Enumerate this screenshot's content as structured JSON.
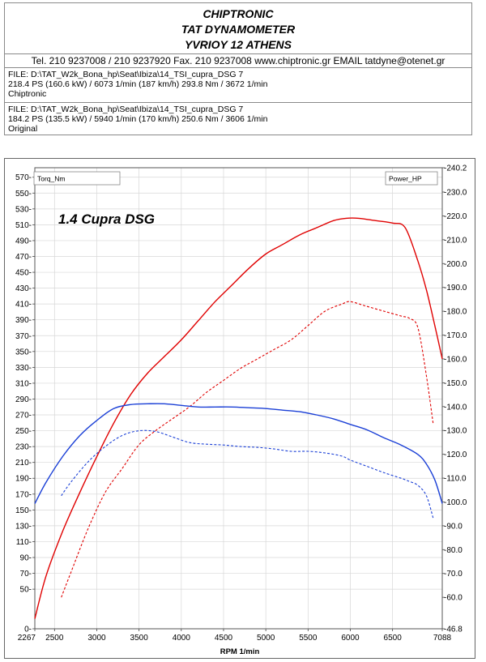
{
  "header": {
    "company": "CHIPTRONIC",
    "subtitle": "TAT DYNAMOMETER",
    "address": "YVRIOY 12 ATHENS",
    "contact": "Tel. 210 9237008 / 210 9237920   Fax. 210 9237008 www.chiptronic.gr EMAIL tatdyne@otenet.gr"
  },
  "runs": [
    {
      "file": "FILE: D:\\TAT_W2k_Bona_hp\\Seat\\Ibiza\\14_TSI_cupra_DSG 7",
      "result": "218.4 PS  (160.6 kW) / 6073 1/min (187 km/h)     293.8 Nm / 3672 1/min",
      "name": "Chiptronic"
    },
    {
      "file": "FILE: D:\\TAT_W2k_Bona_hp\\Seat\\Ibiza\\14_TSI_cupra_DSG 7",
      "result": "184.2 PS  (135.5 kW) / 5940 1/min (170 km/h)     250.6 Nm / 3606 1/min",
      "name": "Original"
    }
  ],
  "chart_data": {
    "type": "line",
    "title": "1.4 Cupra DSG",
    "xlabel": "RPM  1/min",
    "left_legend": "Torq_Nm",
    "right_legend": "Power_HP",
    "xlim": [
      2267,
      7088
    ],
    "x_ticks": [
      "2267",
      "2500",
      "3000",
      "3500",
      "4000",
      "4500",
      "5000",
      "5500",
      "6000",
      "6500",
      "7088"
    ],
    "y_left_lim": [
      0,
      582
    ],
    "y_left_ticks": [
      "0",
      "50",
      "70",
      "90",
      "110",
      "130",
      "150",
      "170",
      "190",
      "210",
      "230",
      "250",
      "270",
      "290",
      "310",
      "330",
      "350",
      "370",
      "390",
      "410",
      "430",
      "450",
      "470",
      "490",
      "510",
      "530",
      "550",
      "570"
    ],
    "y_right_lim": [
      46.8,
      240.2
    ],
    "y_right_ticks": [
      "-240.2",
      "-230.0",
      "-220.0",
      "-210.0",
      "-200.0",
      "-190.0",
      "-180.0",
      "-170.0",
      "-160.0",
      "-150.0",
      "-140.0",
      "-130.0",
      "-120.0",
      "-110.0",
      "-100.0",
      "-90.0",
      "-80.0",
      "-70.0",
      "-60.0",
      "-46.8"
    ],
    "grid": true,
    "series": [
      {
        "name": "Chiptronic",
        "axis": "right",
        "color": "#e00000",
        "style": "solid",
        "x": [
          2267,
          2400,
          2600,
          2800,
          3000,
          3200,
          3400,
          3600,
          3800,
          4000,
          4200,
          4400,
          4600,
          4800,
          5000,
          5200,
          5400,
          5600,
          5800,
          5950,
          6100,
          6300,
          6500,
          6650,
          6800,
          6900,
          7000,
          7088
        ],
        "values": [
          51,
          69,
          88,
          104,
          119,
          133,
          145,
          154,
          161,
          168,
          176,
          184,
          191,
          198,
          204,
          208,
          212,
          215,
          218,
          219,
          219,
          218,
          217,
          215,
          201,
          189,
          174,
          160
        ]
      },
      {
        "name": "Original",
        "axis": "right",
        "color": "#e00000",
        "style": "dashed",
        "x": [
          2580,
          2700,
          2900,
          3100,
          3300,
          3500,
          3700,
          3900,
          4100,
          4300,
          4500,
          4700,
          4900,
          5100,
          5300,
          5500,
          5700,
          5900,
          6000,
          6200,
          6400,
          6600,
          6700,
          6800,
          6900,
          6980
        ],
        "values": [
          60,
          71,
          89,
          104,
          114,
          124,
          130,
          135,
          140,
          146,
          151,
          156,
          160,
          164,
          168,
          174,
          180,
          183,
          184,
          182,
          180,
          178,
          177,
          173,
          153,
          133
        ]
      },
      {
        "name": "Chiptronic",
        "axis": "left",
        "color": "#1a3fd6",
        "style": "solid",
        "x": [
          2267,
          2400,
          2600,
          2800,
          3000,
          3200,
          3400,
          3600,
          3800,
          4000,
          4200,
          4400,
          4600,
          4800,
          5000,
          5200,
          5400,
          5600,
          5800,
          6000,
          6200,
          6400,
          6600,
          6800,
          6900,
          7000,
          7088
        ],
        "values": [
          158,
          185,
          218,
          244,
          263,
          278,
          283,
          284,
          284,
          282,
          280,
          280,
          280,
          279,
          278,
          276,
          274,
          270,
          265,
          258,
          251,
          241,
          232,
          220,
          208,
          188,
          158
        ]
      },
      {
        "name": "Original",
        "axis": "left",
        "color": "#1a3fd6",
        "style": "dashed",
        "x": [
          2580,
          2700,
          2900,
          3100,
          3300,
          3500,
          3700,
          3900,
          4100,
          4300,
          4500,
          4700,
          4900,
          5100,
          5300,
          5500,
          5700,
          5900,
          6000,
          6200,
          6400,
          6600,
          6700,
          6800,
          6900,
          6980
        ],
        "values": [
          168,
          186,
          211,
          230,
          244,
          250,
          249,
          242,
          235,
          233,
          232,
          230,
          229,
          227,
          224,
          224,
          222,
          218,
          213,
          205,
          197,
          190,
          186,
          181,
          168,
          140
        ]
      }
    ]
  }
}
